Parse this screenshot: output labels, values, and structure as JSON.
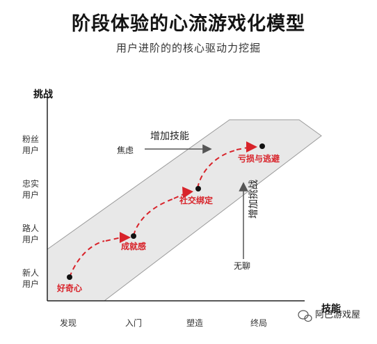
{
  "title": "阶段体验的心流游戏化模型",
  "subtitle": "用户进阶的的核心驱动力挖掘",
  "axes": {
    "y_title": "挑战",
    "x_title": "技能",
    "y_levels": [
      [
        "新人",
        "用户"
      ],
      [
        "路人",
        "用户"
      ],
      [
        "忠实",
        "用户"
      ],
      [
        "粉丝",
        "用户"
      ]
    ],
    "x_levels": [
      "发现",
      "入门",
      "塑造",
      "终局"
    ]
  },
  "zones": {
    "anxiety": "焦虑",
    "boredom": "无聊"
  },
  "arrows": {
    "skill": "增加技能",
    "challenge": "增加挑战"
  },
  "stages": [
    "好奇心",
    "成就感",
    "社交绑定",
    "亏损与逃避"
  ],
  "watermark": "阿巴游戏屋",
  "colors": {
    "accent": "#d8232a",
    "channel_fill": "#e8e8e8",
    "axis": "#222222"
  }
}
